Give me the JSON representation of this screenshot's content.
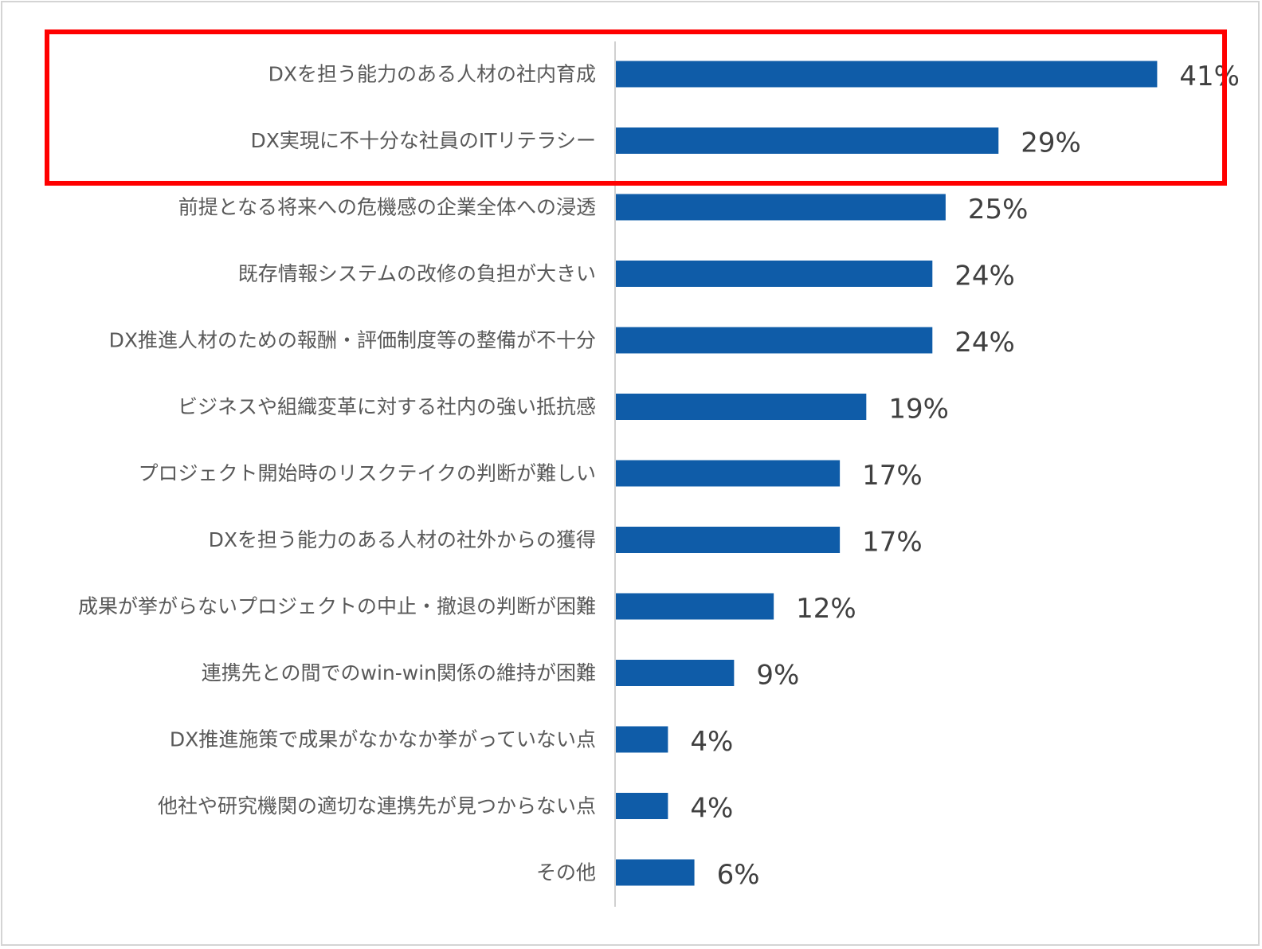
{
  "chart_data": {
    "type": "bar",
    "orientation": "horizontal",
    "categories": [
      "DXを担う能力のある人材の社内育成",
      "DX実現に不十分な社員のITリテラシー",
      "前提となる将来への危機感の企業全体への浸透",
      "既存情報システムの改修の負担が大きい",
      "DX推進人材のための報酬・評価制度等の整備が不十分",
      "ビジネスや組織変革に対する社内の強い抵抗感",
      "プロジェクト開始時のリスクテイクの判断が難しい",
      "DXを担う能力のある人材の社外からの獲得",
      "成果が挙がらないプロジェクトの中止・撤退の判断が困難",
      "連携先との間でのwin-win関係の維持が困難",
      "DX推進施策で成果がなかなか挙がっていない点",
      "他社や研究機関の適切な連携先が見つからない点",
      "その他"
    ],
    "values": [
      41,
      29,
      25,
      24,
      24,
      19,
      17,
      17,
      12,
      9,
      4,
      4,
      6
    ],
    "value_labels": [
      "41%",
      "29%",
      "25%",
      "24%",
      "24%",
      "19%",
      "17%",
      "17%",
      "12%",
      "9%",
      "4%",
      "4%",
      "6%"
    ],
    "unit": "%",
    "xlim": [
      0,
      47
    ],
    "title": "",
    "xlabel": "",
    "ylabel": "",
    "grid": false,
    "legend": "none",
    "bar_color": "#0f5ca8",
    "axis_color": "#d0d0d0",
    "highlight": {
      "categories_index": [
        0,
        1
      ],
      "color": "#ff0000"
    }
  }
}
